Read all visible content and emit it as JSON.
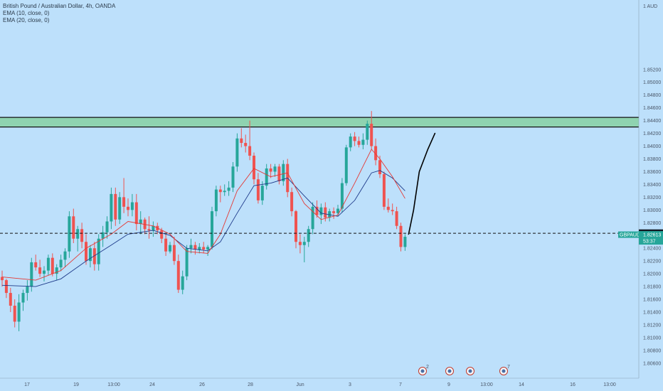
{
  "legend": {
    "title": "British Pound / Australian Dollar, 4h, OANDA",
    "ema10": "EMA (10, close, 0)",
    "ema20": "EMA (20, close, 0)"
  },
  "colors": {
    "background": "#bde0fb",
    "up": "#26a69a",
    "down": "#ef5350",
    "ema10": "#e53935",
    "ema20": "#1e3a8a",
    "zone": "#8fd3b0",
    "axis_text": "#4a5668"
  },
  "chart_data": {
    "type": "candlestick",
    "yunit": "1 AUD",
    "ylim": [
      1.8052,
      1.862
    ],
    "yticks": [
      "1.85200",
      "1.85000",
      "1.84800",
      "1.84600",
      "1.84400",
      "1.84200",
      "1.84000",
      "1.83800",
      "1.83600",
      "1.83400",
      "1.83200",
      "1.83000",
      "1.82800",
      "1.82600",
      "1.82400",
      "1.82200",
      "1.82000",
      "1.81800",
      "1.81600",
      "1.81400",
      "1.81200",
      "1.81000",
      "1.80800",
      "1.80600"
    ],
    "xticks": [
      "17",
      "19",
      "13:00",
      "24",
      "26",
      "28",
      "Jun",
      "3",
      "7",
      "9",
      "13:00",
      "14",
      "16",
      "13:00"
    ],
    "resistance_zone": [
      1.843,
      1.8445
    ],
    "price_line": {
      "label": "1.82634",
      "value": 1.82634
    },
    "current_tag": {
      "symbol": "GBPAUD",
      "price": "1.82613",
      "countdown": "53:37"
    },
    "candles": [
      {
        "o": 1.8195,
        "h": 1.8205,
        "l": 1.818,
        "c": 1.819
      },
      {
        "o": 1.819,
        "h": 1.8192,
        "l": 1.8162,
        "c": 1.817
      },
      {
        "o": 1.817,
        "h": 1.8178,
        "l": 1.814,
        "c": 1.815
      },
      {
        "o": 1.815,
        "h": 1.816,
        "l": 1.8116,
        "c": 1.8125
      },
      {
        "o": 1.8125,
        "h": 1.8168,
        "l": 1.811,
        "c": 1.8155
      },
      {
        "o": 1.8155,
        "h": 1.8175,
        "l": 1.8142,
        "c": 1.817
      },
      {
        "o": 1.817,
        "h": 1.819,
        "l": 1.8158,
        "c": 1.818
      },
      {
        "o": 1.818,
        "h": 1.8225,
        "l": 1.8172,
        "c": 1.8218
      },
      {
        "o": 1.8218,
        "h": 1.823,
        "l": 1.8205,
        "c": 1.821
      },
      {
        "o": 1.821,
        "h": 1.8222,
        "l": 1.8195,
        "c": 1.82
      },
      {
        "o": 1.82,
        "h": 1.8212,
        "l": 1.8188,
        "c": 1.8205
      },
      {
        "o": 1.8205,
        "h": 1.823,
        "l": 1.8198,
        "c": 1.8225
      },
      {
        "o": 1.8225,
        "h": 1.8232,
        "l": 1.8196,
        "c": 1.82
      },
      {
        "o": 1.82,
        "h": 1.8215,
        "l": 1.819,
        "c": 1.821
      },
      {
        "o": 1.821,
        "h": 1.823,
        "l": 1.8204,
        "c": 1.8222
      },
      {
        "o": 1.8222,
        "h": 1.824,
        "l": 1.821,
        "c": 1.8235
      },
      {
        "o": 1.8235,
        "h": 1.8298,
        "l": 1.8225,
        "c": 1.829
      },
      {
        "o": 1.829,
        "h": 1.8302,
        "l": 1.8248,
        "c": 1.8255
      },
      {
        "o": 1.8255,
        "h": 1.8275,
        "l": 1.8235,
        "c": 1.827
      },
      {
        "o": 1.827,
        "h": 1.828,
        "l": 1.824,
        "c": 1.825
      },
      {
        "o": 1.825,
        "h": 1.8262,
        "l": 1.8214,
        "c": 1.822
      },
      {
        "o": 1.822,
        "h": 1.8245,
        "l": 1.821,
        "c": 1.824
      },
      {
        "o": 1.824,
        "h": 1.825,
        "l": 1.8205,
        "c": 1.8215
      },
      {
        "o": 1.8215,
        "h": 1.8262,
        "l": 1.8205,
        "c": 1.8255
      },
      {
        "o": 1.8255,
        "h": 1.8275,
        "l": 1.8242,
        "c": 1.8265
      },
      {
        "o": 1.8265,
        "h": 1.829,
        "l": 1.8255,
        "c": 1.8282
      },
      {
        "o": 1.8282,
        "h": 1.8335,
        "l": 1.827,
        "c": 1.8325
      },
      {
        "o": 1.8325,
        "h": 1.8335,
        "l": 1.8275,
        "c": 1.8285
      },
      {
        "o": 1.8285,
        "h": 1.8328,
        "l": 1.8278,
        "c": 1.832
      },
      {
        "o": 1.832,
        "h": 1.835,
        "l": 1.8295,
        "c": 1.8305
      },
      {
        "o": 1.8305,
        "h": 1.8318,
        "l": 1.829,
        "c": 1.83
      },
      {
        "o": 1.83,
        "h": 1.8325,
        "l": 1.829,
        "c": 1.8312
      },
      {
        "o": 1.8312,
        "h": 1.8325,
        "l": 1.8268,
        "c": 1.8278
      },
      {
        "o": 1.8278,
        "h": 1.8298,
        "l": 1.8262,
        "c": 1.8285
      },
      {
        "o": 1.8285,
        "h": 1.8288,
        "l": 1.8262,
        "c": 1.827
      },
      {
        "o": 1.827,
        "h": 1.829,
        "l": 1.8255,
        "c": 1.8268
      },
      {
        "o": 1.8268,
        "h": 1.8282,
        "l": 1.8258,
        "c": 1.8275
      },
      {
        "o": 1.8275,
        "h": 1.828,
        "l": 1.8262,
        "c": 1.8268
      },
      {
        "o": 1.8268,
        "h": 1.8272,
        "l": 1.8248,
        "c": 1.8255
      },
      {
        "o": 1.8255,
        "h": 1.8262,
        "l": 1.8228,
        "c": 1.8235
      },
      {
        "o": 1.8235,
        "h": 1.825,
        "l": 1.8232,
        "c": 1.8245
      },
      {
        "o": 1.8245,
        "h": 1.8258,
        "l": 1.8214,
        "c": 1.822
      },
      {
        "o": 1.822,
        "h": 1.823,
        "l": 1.817,
        "c": 1.8175
      },
      {
        "o": 1.8175,
        "h": 1.8205,
        "l": 1.8168,
        "c": 1.8196
      },
      {
        "o": 1.8196,
        "h": 1.8245,
        "l": 1.819,
        "c": 1.824
      },
      {
        "o": 1.824,
        "h": 1.8255,
        "l": 1.8232,
        "c": 1.8245
      },
      {
        "o": 1.8245,
        "h": 1.825,
        "l": 1.823,
        "c": 1.8238
      },
      {
        "o": 1.8238,
        "h": 1.8248,
        "l": 1.8232,
        "c": 1.8242
      },
      {
        "o": 1.8242,
        "h": 1.825,
        "l": 1.8232,
        "c": 1.8238
      },
      {
        "o": 1.8238,
        "h": 1.8245,
        "l": 1.8228,
        "c": 1.8242
      },
      {
        "o": 1.8242,
        "h": 1.8305,
        "l": 1.8238,
        "c": 1.8298
      },
      {
        "o": 1.8298,
        "h": 1.8338,
        "l": 1.829,
        "c": 1.8332
      },
      {
        "o": 1.8332,
        "h": 1.8338,
        "l": 1.8312,
        "c": 1.8328
      },
      {
        "o": 1.8328,
        "h": 1.834,
        "l": 1.8322,
        "c": 1.833
      },
      {
        "o": 1.833,
        "h": 1.8345,
        "l": 1.8322,
        "c": 1.8335
      },
      {
        "o": 1.8335,
        "h": 1.8375,
        "l": 1.8328,
        "c": 1.8368
      },
      {
        "o": 1.8368,
        "h": 1.842,
        "l": 1.836,
        "c": 1.8412
      },
      {
        "o": 1.8412,
        "h": 1.8428,
        "l": 1.8398,
        "c": 1.8405
      },
      {
        "o": 1.8405,
        "h": 1.8418,
        "l": 1.839,
        "c": 1.84
      },
      {
        "o": 1.84,
        "h": 1.844,
        "l": 1.8378,
        "c": 1.8385
      },
      {
        "o": 1.8385,
        "h": 1.839,
        "l": 1.834,
        "c": 1.8348
      },
      {
        "o": 1.8348,
        "h": 1.8358,
        "l": 1.831,
        "c": 1.8315
      },
      {
        "o": 1.8315,
        "h": 1.8345,
        "l": 1.8308,
        "c": 1.8338
      },
      {
        "o": 1.8338,
        "h": 1.8372,
        "l": 1.8332,
        "c": 1.8365
      },
      {
        "o": 1.8365,
        "h": 1.8372,
        "l": 1.835,
        "c": 1.836
      },
      {
        "o": 1.836,
        "h": 1.8372,
        "l": 1.8352,
        "c": 1.8368
      },
      {
        "o": 1.8368,
        "h": 1.8372,
        "l": 1.834,
        "c": 1.8345
      },
      {
        "o": 1.8345,
        "h": 1.8378,
        "l": 1.8338,
        "c": 1.8372
      },
      {
        "o": 1.8372,
        "h": 1.838,
        "l": 1.832,
        "c": 1.8328
      },
      {
        "o": 1.8328,
        "h": 1.8335,
        "l": 1.829,
        "c": 1.8298
      },
      {
        "o": 1.8298,
        "h": 1.83,
        "l": 1.824,
        "c": 1.825
      },
      {
        "o": 1.825,
        "h": 1.8262,
        "l": 1.8232,
        "c": 1.8245
      },
      {
        "o": 1.8245,
        "h": 1.8258,
        "l": 1.8218,
        "c": 1.825
      },
      {
        "o": 1.825,
        "h": 1.8275,
        "l": 1.8242,
        "c": 1.827
      },
      {
        "o": 1.827,
        "h": 1.8312,
        "l": 1.8262,
        "c": 1.8305
      },
      {
        "o": 1.8305,
        "h": 1.8315,
        "l": 1.8288,
        "c": 1.8292
      },
      {
        "o": 1.8292,
        "h": 1.831,
        "l": 1.8278,
        "c": 1.8304
      },
      {
        "o": 1.8304,
        "h": 1.8312,
        "l": 1.8282,
        "c": 1.8288
      },
      {
        "o": 1.8288,
        "h": 1.8302,
        "l": 1.8282,
        "c": 1.8298
      },
      {
        "o": 1.8298,
        "h": 1.8304,
        "l": 1.8286,
        "c": 1.8295
      },
      {
        "o": 1.8295,
        "h": 1.8308,
        "l": 1.829,
        "c": 1.8302
      },
      {
        "o": 1.8302,
        "h": 1.835,
        "l": 1.8296,
        "c": 1.8342
      },
      {
        "o": 1.8342,
        "h": 1.8402,
        "l": 1.8338,
        "c": 1.8398
      },
      {
        "o": 1.8398,
        "h": 1.842,
        "l": 1.8392,
        "c": 1.8415
      },
      {
        "o": 1.8415,
        "h": 1.8422,
        "l": 1.84,
        "c": 1.8408
      },
      {
        "o": 1.8408,
        "h": 1.8415,
        "l": 1.8398,
        "c": 1.8402
      },
      {
        "o": 1.8402,
        "h": 1.842,
        "l": 1.8395,
        "c": 1.841
      },
      {
        "o": 1.841,
        "h": 1.844,
        "l": 1.8402,
        "c": 1.8435
      },
      {
        "o": 1.8435,
        "h": 1.8455,
        "l": 1.8395,
        "c": 1.84
      },
      {
        "o": 1.84,
        "h": 1.8412,
        "l": 1.837,
        "c": 1.8378
      },
      {
        "o": 1.8378,
        "h": 1.8385,
        "l": 1.835,
        "c": 1.8356
      },
      {
        "o": 1.8356,
        "h": 1.836,
        "l": 1.83,
        "c": 1.8305
      },
      {
        "o": 1.8305,
        "h": 1.8318,
        "l": 1.8296,
        "c": 1.83
      },
      {
        "o": 1.83,
        "h": 1.831,
        "l": 1.8292,
        "c": 1.8298
      },
      {
        "o": 1.8298,
        "h": 1.8305,
        "l": 1.827,
        "c": 1.8275
      },
      {
        "o": 1.8275,
        "h": 1.828,
        "l": 1.8235,
        "c": 1.8242
      },
      {
        "o": 1.8242,
        "h": 1.8262,
        "l": 1.8236,
        "c": 1.8258
      }
    ],
    "ema10": [
      [
        0,
        1.8195
      ],
      [
        8,
        1.819
      ],
      [
        14,
        1.8205
      ],
      [
        20,
        1.824
      ],
      [
        26,
        1.8262
      ],
      [
        30,
        1.8282
      ],
      [
        36,
        1.8275
      ],
      [
        40,
        1.8262
      ],
      [
        44,
        1.8235
      ],
      [
        49,
        1.8232
      ],
      [
        52,
        1.8262
      ],
      [
        56,
        1.833
      ],
      [
        60,
        1.8365
      ],
      [
        64,
        1.8352
      ],
      [
        68,
        1.8358
      ],
      [
        72,
        1.831
      ],
      [
        76,
        1.8285
      ],
      [
        80,
        1.8292
      ],
      [
        84,
        1.8342
      ],
      [
        88,
        1.8395
      ],
      [
        90,
        1.838
      ],
      [
        93,
        1.8352
      ],
      [
        96,
        1.8318
      ]
    ],
    "ema20": [
      [
        0,
        1.8182
      ],
      [
        8,
        1.818
      ],
      [
        14,
        1.8192
      ],
      [
        20,
        1.822
      ],
      [
        26,
        1.8245
      ],
      [
        30,
        1.8262
      ],
      [
        36,
        1.8268
      ],
      [
        40,
        1.826
      ],
      [
        44,
        1.824
      ],
      [
        49,
        1.8236
      ],
      [
        52,
        1.825
      ],
      [
        56,
        1.8295
      ],
      [
        60,
        1.8338
      ],
      [
        64,
        1.8342
      ],
      [
        68,
        1.835
      ],
      [
        72,
        1.8322
      ],
      [
        76,
        1.8295
      ],
      [
        80,
        1.829
      ],
      [
        84,
        1.8315
      ],
      [
        88,
        1.8358
      ],
      [
        90,
        1.8362
      ],
      [
        93,
        1.835
      ],
      [
        96,
        1.833
      ]
    ],
    "projection": [
      [
        1.8262
      ],
      [
        1.83
      ],
      [
        1.836
      ],
      [
        1.8395
      ],
      [
        1.842
      ]
    ],
    "events": [
      {
        "count": "2"
      },
      {
        "count": ""
      },
      {
        "count": ""
      },
      {
        "count": "7"
      }
    ]
  }
}
